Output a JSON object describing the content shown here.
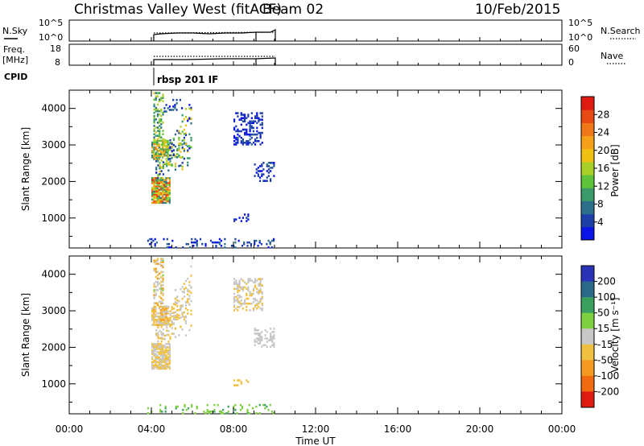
{
  "header": {
    "station": "Christmas Valley West (fitACF)",
    "beam": "Beam 02",
    "date": "10/Feb/2015"
  },
  "strips": {
    "nsky_label": "N.Sky",
    "nsky_ticks": [
      "10^5",
      "10^0"
    ],
    "nsearch_label": "N.Search",
    "freq_label_1": "Freq.",
    "freq_label_2": "[MHz]",
    "freq_ticks": [
      "18",
      "8"
    ],
    "nave_label": "Nave",
    "nave_ticks": [
      "60",
      "0"
    ],
    "cpid_label": "CPID",
    "cpid_value": "rbsp 201 IF"
  },
  "colors": {
    "power": [
      "#0a14e6",
      "#1e3fa8",
      "#2d6f8a",
      "#3a9a6a",
      "#5ec23a",
      "#a8d028",
      "#f0c010",
      "#f5a018",
      "#f07818",
      "#e84a14",
      "#e01a10"
    ],
    "velocity": [
      "#2a32b8",
      "#2a6a88",
      "#3aa060",
      "#7fd040",
      "#c8c8c8",
      "#f0c040",
      "#f59a20",
      "#f06a10",
      "#e01a10"
    ]
  },
  "chart_data": [
    {
      "type": "heatmap",
      "name": "power",
      "ylabel": "Slant Range [km]",
      "ylim": [
        180,
        4500
      ],
      "yticks": [
        1000,
        2000,
        3000,
        4000
      ],
      "xlim": [
        0,
        24
      ],
      "colorbar": {
        "label": "Power [dB]",
        "ticks": [
          "4",
          "8",
          "12",
          "16",
          "20",
          "24",
          "28"
        ],
        "range": [
          0,
          32
        ]
      },
      "regions": [
        {
          "t": [
            4.0,
            4.9
          ],
          "r": [
            1400,
            2100
          ],
          "v": [
            6,
            30
          ],
          "density": 0.85
        },
        {
          "t": [
            4.2,
            5.9
          ],
          "r": [
            2000,
            2800
          ],
          "v": [
            2,
            20
          ],
          "density": 0.5,
          "slope": 900
        },
        {
          "t": [
            4.0,
            4.8
          ],
          "r": [
            2600,
            3100
          ],
          "v": [
            8,
            26
          ],
          "density": 0.75
        },
        {
          "t": [
            4.1,
            4.6
          ],
          "r": [
            3100,
            4450
          ],
          "v": [
            6,
            18
          ],
          "density": 0.45
        },
        {
          "t": [
            4.6,
            5.5
          ],
          "r": [
            3900,
            4300
          ],
          "v": [
            1,
            8
          ],
          "density": 0.2
        },
        {
          "t": [
            8.0,
            9.4
          ],
          "r": [
            3000,
            3900
          ],
          "v": [
            1,
            6
          ],
          "density": 0.4
        },
        {
          "t": [
            9.0,
            10.0
          ],
          "r": [
            2000,
            2500
          ],
          "v": [
            1,
            6
          ],
          "density": 0.35
        },
        {
          "t": [
            3.8,
            10.0
          ],
          "r": [
            180,
            420
          ],
          "v": [
            1,
            8
          ],
          "density": 0.18
        },
        {
          "t": [
            8.0,
            8.7
          ],
          "r": [
            900,
            1100
          ],
          "v": [
            1,
            4
          ],
          "density": 0.25
        }
      ]
    },
    {
      "type": "heatmap",
      "name": "velocity",
      "ylabel": "Slant Range [km]",
      "ylim": [
        180,
        4500
      ],
      "yticks": [
        1000,
        2000,
        3000,
        4000
      ],
      "xlim": [
        0,
        24
      ],
      "xticks": [
        "00:00",
        "04:00",
        "08:00",
        "12:00",
        "16:00",
        "20:00",
        "00:00"
      ],
      "xlabel": "Time UT",
      "colorbar": {
        "label": "Velocity [m s⁻¹]",
        "ticks": [
          "-200",
          "-100",
          "-50",
          "-15",
          "15",
          "50",
          "100",
          "200"
        ]
      },
      "regions": [
        {
          "t": [
            4.0,
            4.9
          ],
          "r": [
            1400,
            2100
          ],
          "v": [
            -50,
            15
          ],
          "density": 0.85
        },
        {
          "t": [
            4.2,
            5.9
          ],
          "r": [
            2000,
            2800
          ],
          "v": [
            -50,
            15
          ],
          "density": 0.5,
          "slope": 900
        },
        {
          "t": [
            4.0,
            4.8
          ],
          "r": [
            2600,
            3100
          ],
          "v": [
            -60,
            10
          ],
          "density": 0.75
        },
        {
          "t": [
            4.1,
            4.6
          ],
          "r": [
            3100,
            4450
          ],
          "v": [
            -60,
            20
          ],
          "density": 0.45
        },
        {
          "t": [
            8.0,
            9.4
          ],
          "r": [
            3000,
            3900
          ],
          "v": [
            -30,
            15
          ],
          "density": 0.4
        },
        {
          "t": [
            9.0,
            10.0
          ],
          "r": [
            2000,
            2500
          ],
          "v": [
            -15,
            15
          ],
          "density": 0.35
        },
        {
          "t": [
            3.8,
            10.0
          ],
          "r": [
            180,
            420
          ],
          "v": [
            20,
            60
          ],
          "density": 0.15
        },
        {
          "t": [
            8.0,
            8.7
          ],
          "r": [
            900,
            1100
          ],
          "v": [
            -50,
            -20
          ],
          "density": 0.25
        }
      ]
    }
  ]
}
